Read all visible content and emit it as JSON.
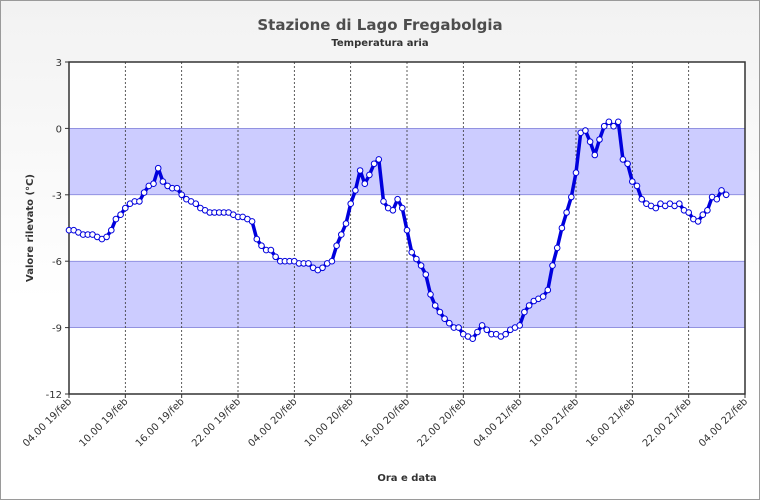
{
  "chart_data": {
    "type": "line",
    "title": "Stazione di Lago Fregabolgia",
    "subtitle": "Temperatura aria",
    "xlabel": "Ora e data",
    "ylabel": "Valore rilevato (°C)",
    "ylim": [
      -12,
      3
    ],
    "yticks": [
      3,
      0,
      -3,
      -6,
      -9,
      -12
    ],
    "band_ranges": [
      [
        -3,
        0
      ],
      [
        -9,
        -6
      ]
    ],
    "xlim_hours": [
      0,
      72
    ],
    "x_tick_hours": [
      0,
      6,
      12,
      18,
      24,
      30,
      36,
      42,
      48,
      54,
      60,
      66,
      72
    ],
    "x_tick_labels": [
      "04.00 19/feb",
      "10.00 19/feb",
      "16.00 19/feb",
      "22.00 19/feb",
      "04.00 20/feb",
      "10.00 20/feb",
      "16.00 20/feb",
      "22.00 20/feb",
      "04.00 21/feb",
      "10.00 21/feb",
      "16.00 21/feb",
      "22.00 21/feb",
      "04.00 22/feb"
    ],
    "series": [
      {
        "name": "Temperatura aria",
        "color": "#0000dd",
        "marker_fill": "#ffffff",
        "interval_hours": 0.5,
        "values": [
          -4.6,
          -4.6,
          -4.7,
          -4.8,
          -4.8,
          -4.8,
          -4.9,
          -5.0,
          -4.9,
          -4.6,
          -4.1,
          -3.9,
          -3.6,
          -3.4,
          -3.3,
          -3.3,
          -2.9,
          -2.6,
          -2.5,
          -1.8,
          -2.4,
          -2.6,
          -2.7,
          -2.7,
          -3.0,
          -3.2,
          -3.3,
          -3.4,
          -3.6,
          -3.7,
          -3.8,
          -3.8,
          -3.8,
          -3.8,
          -3.8,
          -3.9,
          -4.0,
          -4.0,
          -4.1,
          -4.2,
          -5.0,
          -5.3,
          -5.5,
          -5.5,
          -5.8,
          -6.0,
          -6.0,
          -6.0,
          -6.0,
          -6.1,
          -6.1,
          -6.1,
          -6.3,
          -6.4,
          -6.3,
          -6.1,
          -6.0,
          -5.3,
          -4.8,
          -4.3,
          -3.4,
          -2.8,
          -1.9,
          -2.5,
          -2.1,
          -1.6,
          -1.4,
          -3.3,
          -3.6,
          -3.7,
          -3.2,
          -3.6,
          -4.6,
          -5.6,
          -5.9,
          -6.2,
          -6.6,
          -7.5,
          -8.0,
          -8.3,
          -8.6,
          -8.8,
          -9.0,
          -9.0,
          -9.3,
          -9.4,
          -9.5,
          -9.2,
          -8.9,
          -9.1,
          -9.3,
          -9.3,
          -9.4,
          -9.3,
          -9.1,
          -9.0,
          -8.9,
          -8.3,
          -8.0,
          -7.8,
          -7.7,
          -7.6,
          -7.3,
          -6.2,
          -5.4,
          -4.5,
          -3.8,
          -3.1,
          -2.0,
          -0.2,
          -0.1,
          -0.6,
          -1.2,
          -0.5,
          0.1,
          0.3,
          0.1,
          0.3,
          -1.4,
          -1.6,
          -2.4,
          -2.6,
          -3.2,
          -3.4,
          -3.5,
          -3.6,
          -3.4,
          -3.5,
          -3.4,
          -3.5,
          -3.4,
          -3.7,
          -3.8,
          -4.1,
          -4.2,
          -3.9,
          -3.7,
          -3.1,
          -3.2,
          -2.8,
          -3.0
        ]
      }
    ]
  }
}
